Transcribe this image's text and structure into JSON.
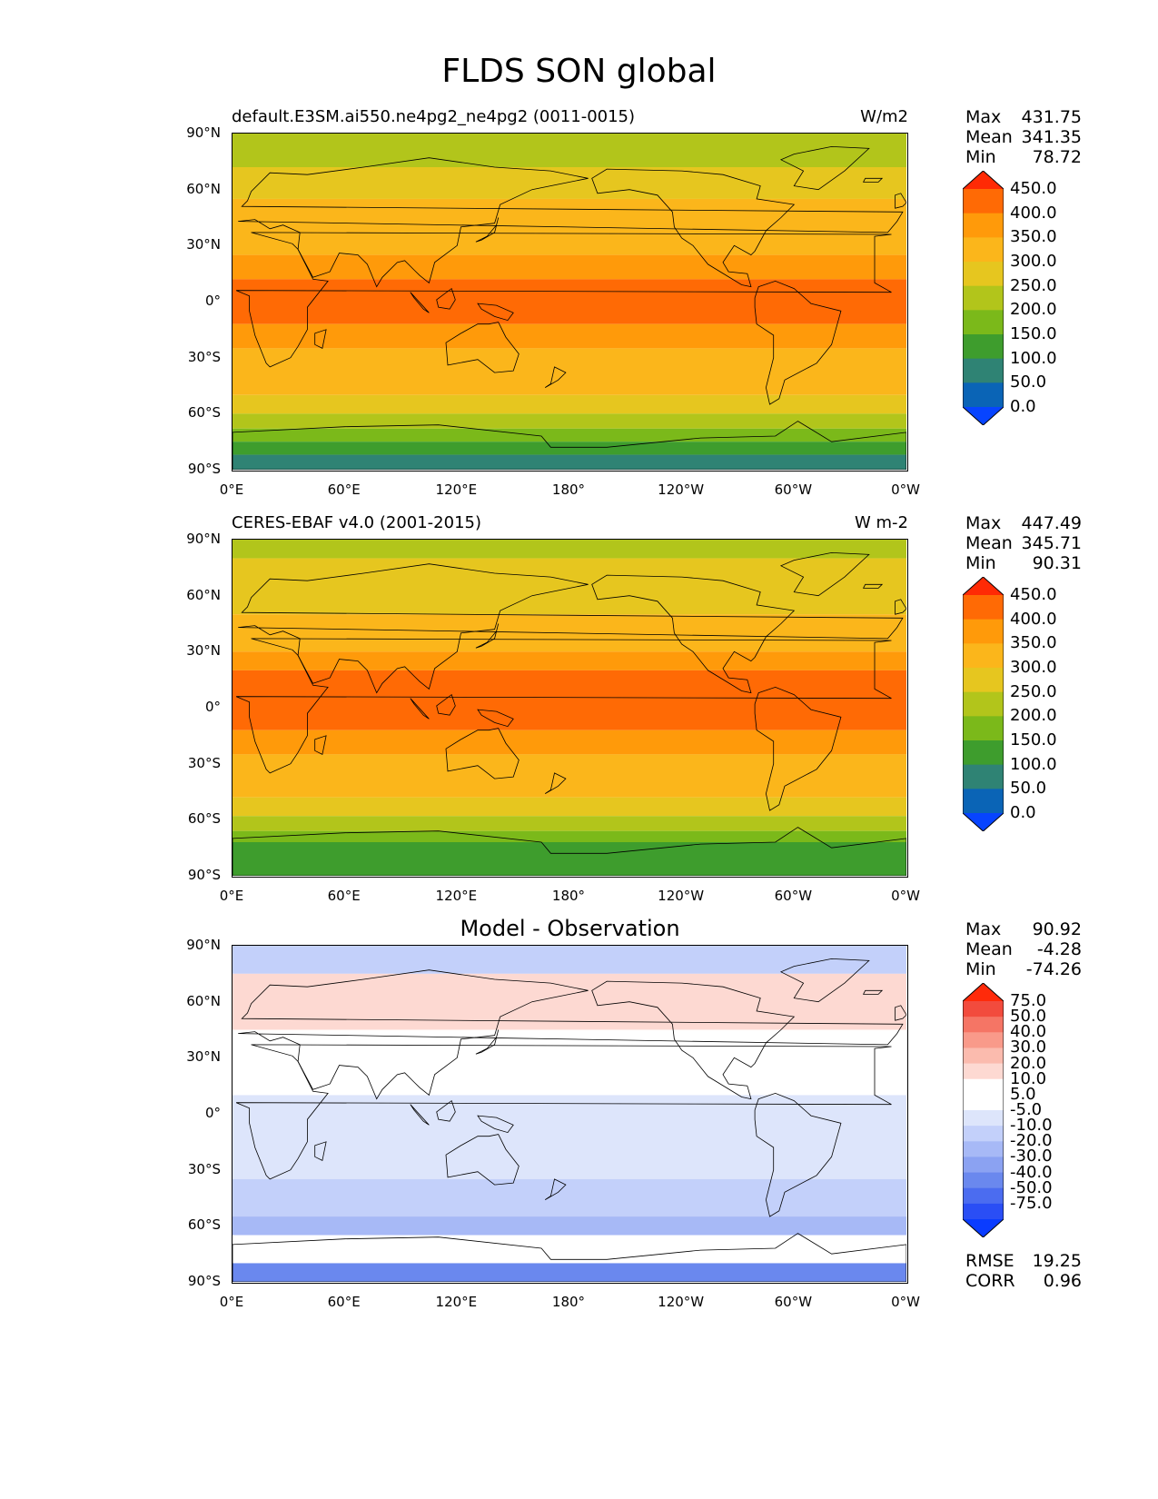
{
  "figure": {
    "title": "FLDS SON global"
  },
  "lat_labels": [
    "90°N",
    "60°N",
    "30°N",
    "0°",
    "30°S",
    "60°S",
    "90°S"
  ],
  "lon_labels": [
    "0°E",
    "60°E",
    "120°E",
    "180°",
    "120°W",
    "60°W",
    "0°W"
  ],
  "panels": [
    {
      "left_title": "default.E3SM.ai550.ne4pg2_ne4pg2 (0011-0015)",
      "right_title": "W/m2",
      "center_title": "",
      "stats": [
        {
          "label": "Max",
          "value": "431.75"
        },
        {
          "label": "Mean",
          "value": "341.35"
        },
        {
          "label": "Min",
          "value": "78.72"
        }
      ],
      "colorbar": {
        "colors": [
          "#ff2a05",
          "#ff6a05",
          "#ff9a0a",
          "#fbb61b",
          "#e6c61f",
          "#b2c51b",
          "#7bb91a",
          "#3e9d2d",
          "#2f8374",
          "#0a64b6",
          "#0744ff"
        ],
        "labels": [
          "450.0",
          "400.0",
          "350.0",
          "300.0",
          "250.0",
          "200.0",
          "150.0",
          "100.0",
          "50.0",
          "0.0"
        ]
      },
      "field_bands": [
        {
          "lat_from": 90,
          "lat_to": 72,
          "color": "#b2c51b"
        },
        {
          "lat_from": 72,
          "lat_to": 55,
          "color": "#e6c61f"
        },
        {
          "lat_from": 55,
          "lat_to": 25,
          "color": "#fbb61b"
        },
        {
          "lat_from": 25,
          "lat_to": 12,
          "color": "#ff9a0a"
        },
        {
          "lat_from": 12,
          "lat_to": -12,
          "color": "#ff6a05"
        },
        {
          "lat_from": -12,
          "lat_to": -25,
          "color": "#ff9a0a"
        },
        {
          "lat_from": -25,
          "lat_to": -50,
          "color": "#fbb61b"
        },
        {
          "lat_from": -50,
          "lat_to": -60,
          "color": "#e6c61f"
        },
        {
          "lat_from": -60,
          "lat_to": -68,
          "color": "#b2c51b"
        },
        {
          "lat_from": -68,
          "lat_to": -75,
          "color": "#7bb91a"
        },
        {
          "lat_from": -75,
          "lat_to": -82,
          "color": "#3e9d2d"
        },
        {
          "lat_from": -82,
          "lat_to": -90,
          "color": "#2f8374"
        }
      ]
    },
    {
      "left_title": "CERES-EBAF v4.0 (2001-2015)",
      "right_title": "W m-2",
      "center_title": "",
      "stats": [
        {
          "label": "Max",
          "value": "447.49"
        },
        {
          "label": "Mean",
          "value": "345.71"
        },
        {
          "label": "Min",
          "value": "90.31"
        }
      ],
      "colorbar": {
        "colors": [
          "#ff2a05",
          "#ff6a05",
          "#ff9a0a",
          "#fbb61b",
          "#e6c61f",
          "#b2c51b",
          "#7bb91a",
          "#3e9d2d",
          "#2f8374",
          "#0a64b6",
          "#0744ff"
        ],
        "labels": [
          "450.0",
          "400.0",
          "350.0",
          "300.0",
          "250.0",
          "200.0",
          "150.0",
          "100.0",
          "50.0",
          "0.0"
        ]
      },
      "field_bands": [
        {
          "lat_from": 90,
          "lat_to": 80,
          "color": "#b2c51b"
        },
        {
          "lat_from": 80,
          "lat_to": 50,
          "color": "#e6c61f"
        },
        {
          "lat_from": 50,
          "lat_to": 30,
          "color": "#fbb61b"
        },
        {
          "lat_from": 30,
          "lat_to": 20,
          "color": "#ff9a0a"
        },
        {
          "lat_from": 20,
          "lat_to": -12,
          "color": "#ff6a05"
        },
        {
          "lat_from": -12,
          "lat_to": -25,
          "color": "#ff9a0a"
        },
        {
          "lat_from": -25,
          "lat_to": -48,
          "color": "#fbb61b"
        },
        {
          "lat_from": -48,
          "lat_to": -58,
          "color": "#e6c61f"
        },
        {
          "lat_from": -58,
          "lat_to": -66,
          "color": "#b2c51b"
        },
        {
          "lat_from": -66,
          "lat_to": -72,
          "color": "#7bb91a"
        },
        {
          "lat_from": -72,
          "lat_to": -90,
          "color": "#3e9d2d"
        }
      ]
    },
    {
      "left_title": "",
      "right_title": "",
      "center_title": "Model - Observation",
      "stats": [
        {
          "label": "Max",
          "value": "90.92"
        },
        {
          "label": "Mean",
          "value": "-4.28"
        },
        {
          "label": "Min",
          "value": "-74.26"
        }
      ],
      "colorbar": {
        "colors": [
          "#ff2a0a",
          "#f24b3d",
          "#f57565",
          "#f99a8a",
          "#fbbbae",
          "#fdd9d2",
          "#ffffff",
          "#ffffff",
          "#dde5fb",
          "#c3d0fa",
          "#a7b9f6",
          "#8ba2f2",
          "#6a88ee",
          "#4b6cf0",
          "#2a4ef5",
          "#0a3cff"
        ],
        "labels": [
          "75.0",
          "50.0",
          "40.0",
          "30.0",
          "20.0",
          "10.0",
          "5.0",
          "-5.0",
          "-10.0",
          "-20.0",
          "-30.0",
          "-40.0",
          "-50.0",
          "-75.0"
        ]
      },
      "field_bands": [
        {
          "lat_from": 90,
          "lat_to": 75,
          "color": "#c3d0fa"
        },
        {
          "lat_from": 75,
          "lat_to": 45,
          "color": "#fdd9d2"
        },
        {
          "lat_from": 45,
          "lat_to": 10,
          "color": "#ffffff"
        },
        {
          "lat_from": 10,
          "lat_to": -35,
          "color": "#dde5fb"
        },
        {
          "lat_from": -35,
          "lat_to": -55,
          "color": "#c3d0fa"
        },
        {
          "lat_from": -55,
          "lat_to": -65,
          "color": "#a7b9f6"
        },
        {
          "lat_from": -65,
          "lat_to": -80,
          "color": "#ffffff"
        },
        {
          "lat_from": -80,
          "lat_to": -90,
          "color": "#6a88ee"
        }
      ],
      "bottom_stats": [
        {
          "label": "RMSE",
          "value": "19.25"
        },
        {
          "label": "CORR",
          "value": "0.96"
        }
      ]
    }
  ]
}
